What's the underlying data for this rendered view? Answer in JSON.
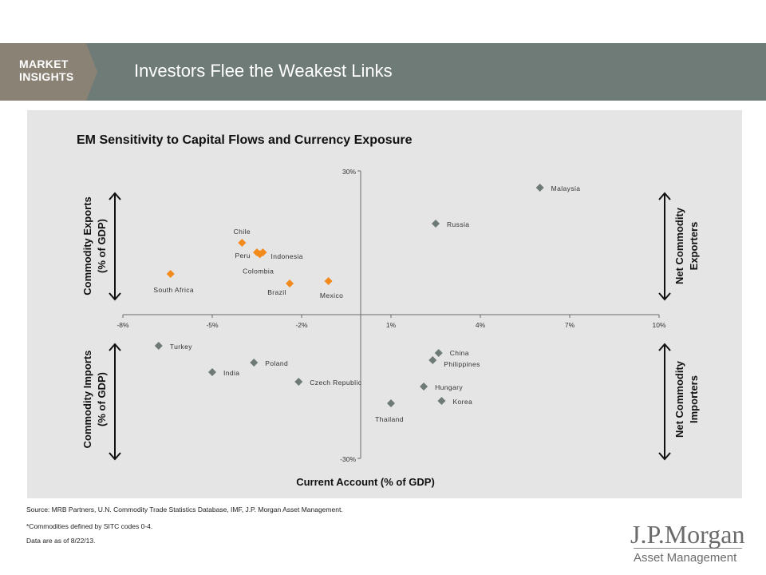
{
  "header": {
    "brand_line1": "MARKET",
    "brand_line2": "INSIGHTS",
    "title": "Investors Flee the Weakest Links"
  },
  "colors": {
    "header_bg": "#6f7b76",
    "brand_tab": "#8b8276",
    "panel_bg": "#e5e5e5",
    "exporter_marker": "#f28a1c",
    "importer_marker": "#6d7a76",
    "axis": "#6b6b6b"
  },
  "chart_data": {
    "type": "scatter",
    "title": "EM Sensitivity to Capital Flows and Currency Exposure",
    "xlabel": "Current Account (% of GDP)",
    "xlim": [
      -8,
      10
    ],
    "ylim": [
      -30,
      30
    ],
    "x_ticks": [
      "-8%",
      "-5%",
      "-2%",
      "1%",
      "4%",
      "7%",
      "10%"
    ],
    "y_ticks": [
      "30%",
      "-30%"
    ],
    "left_upper_label": [
      "Commodity Exports",
      "(% of GDP)"
    ],
    "left_lower_label": [
      "Commodity Imports",
      "(% of GDP)"
    ],
    "right_upper_label": [
      "Net Commodity",
      "Exporters"
    ],
    "right_lower_label": [
      "Net Commodity",
      "Importers"
    ],
    "points": [
      {
        "name": "Malaysia",
        "x": 6.0,
        "y": 26.5,
        "group": "other"
      },
      {
        "name": "Russia",
        "x": 2.5,
        "y": 19.0,
        "group": "other"
      },
      {
        "name": "Chile",
        "x": -4.0,
        "y": 15.0,
        "group": "highlight"
      },
      {
        "name": "Peru",
        "x": -3.5,
        "y": 13.0,
        "group": "highlight"
      },
      {
        "name": "Indonesia",
        "x": -3.3,
        "y": 13.0,
        "group": "highlight"
      },
      {
        "name": "Colombia",
        "x": -3.4,
        "y": 12.6,
        "group": "highlight"
      },
      {
        "name": "South Africa",
        "x": -6.4,
        "y": 8.5,
        "group": "highlight"
      },
      {
        "name": "Brazil",
        "x": -2.4,
        "y": 6.5,
        "group": "highlight"
      },
      {
        "name": "Mexico",
        "x": -1.1,
        "y": 7.0,
        "group": "highlight"
      },
      {
        "name": "Turkey",
        "x": -6.8,
        "y": -6.5,
        "group": "other"
      },
      {
        "name": "Poland",
        "x": -3.6,
        "y": -10.0,
        "group": "other"
      },
      {
        "name": "India",
        "x": -5.0,
        "y": -12.0,
        "group": "other"
      },
      {
        "name": "Czech Republic",
        "x": -2.1,
        "y": -14.0,
        "group": "other"
      },
      {
        "name": "China",
        "x": 2.6,
        "y": -8.0,
        "group": "other"
      },
      {
        "name": "Philippines",
        "x": 2.4,
        "y": -9.5,
        "group": "other"
      },
      {
        "name": "Hungary",
        "x": 2.1,
        "y": -15.0,
        "group": "other"
      },
      {
        "name": "Korea",
        "x": 2.7,
        "y": -18.0,
        "group": "other"
      },
      {
        "name": "Thailand",
        "x": 1.0,
        "y": -18.5,
        "group": "other"
      }
    ]
  },
  "footnotes": {
    "source": "Source: MRB Partners, U.N. Commodity Trade Statistics Database, IMF, J.P. Morgan Asset Management.",
    "note": "*Commodities defined by SITC codes 0-4.",
    "date": "Data are as of 8/22/13."
  },
  "logo": {
    "name": "J.P.Morgan",
    "subtitle": "Asset Management"
  }
}
